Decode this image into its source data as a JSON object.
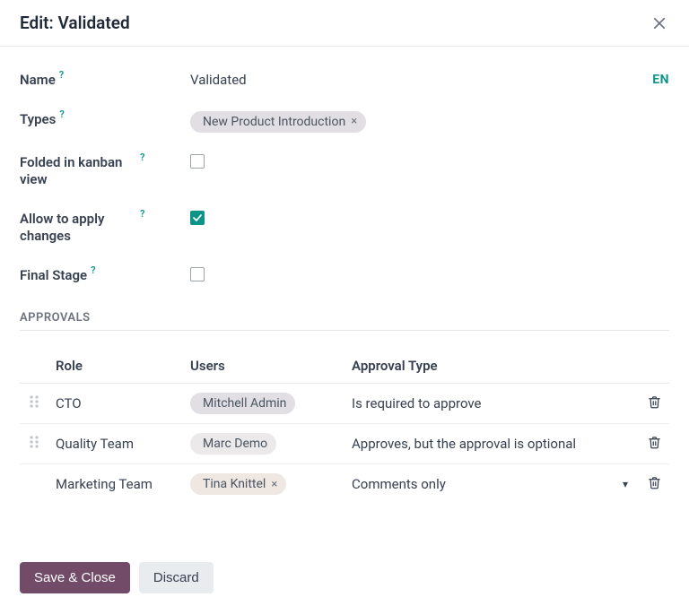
{
  "colors": {
    "accent": "#0d9488",
    "primary_btn_bg": "#714b67",
    "secondary_btn_bg": "#e9ecef",
    "tag_bg": "#e1dfe3",
    "border": "#e5e7eb",
    "text": "#374151"
  },
  "header": {
    "title": "Edit: Validated"
  },
  "form": {
    "name": {
      "label": "Name",
      "value": "Validated",
      "lang": "EN"
    },
    "types": {
      "label": "Types",
      "tags": [
        {
          "text": "New Product Introduction",
          "removable": true
        }
      ]
    },
    "folded": {
      "label": "Folded in kanban view",
      "checked": false
    },
    "allow_changes": {
      "label": "Allow to apply changes",
      "checked": true
    },
    "final_stage": {
      "label": "Final Stage",
      "checked": false
    }
  },
  "approvals": {
    "section_title": "APPROVALS",
    "columns": {
      "role": "Role",
      "users": "Users",
      "type": "Approval Type"
    },
    "rows": [
      {
        "drag": true,
        "role": "CTO",
        "users": [
          {
            "text": "Mitchell Admin",
            "removable": false
          }
        ],
        "type": "Is required to approve",
        "dropdown": false
      },
      {
        "drag": true,
        "role": "Quality Team",
        "users": [
          {
            "text": "Marc Demo",
            "removable": false
          }
        ],
        "type": "Approves, but the approval is optional",
        "dropdown": false
      },
      {
        "drag": false,
        "role": "Marketing Team",
        "users": [
          {
            "text": "Tina Knittel",
            "removable": true
          }
        ],
        "type": "Comments only",
        "dropdown": true
      }
    ]
  },
  "footer": {
    "save": "Save & Close",
    "discard": "Discard"
  }
}
